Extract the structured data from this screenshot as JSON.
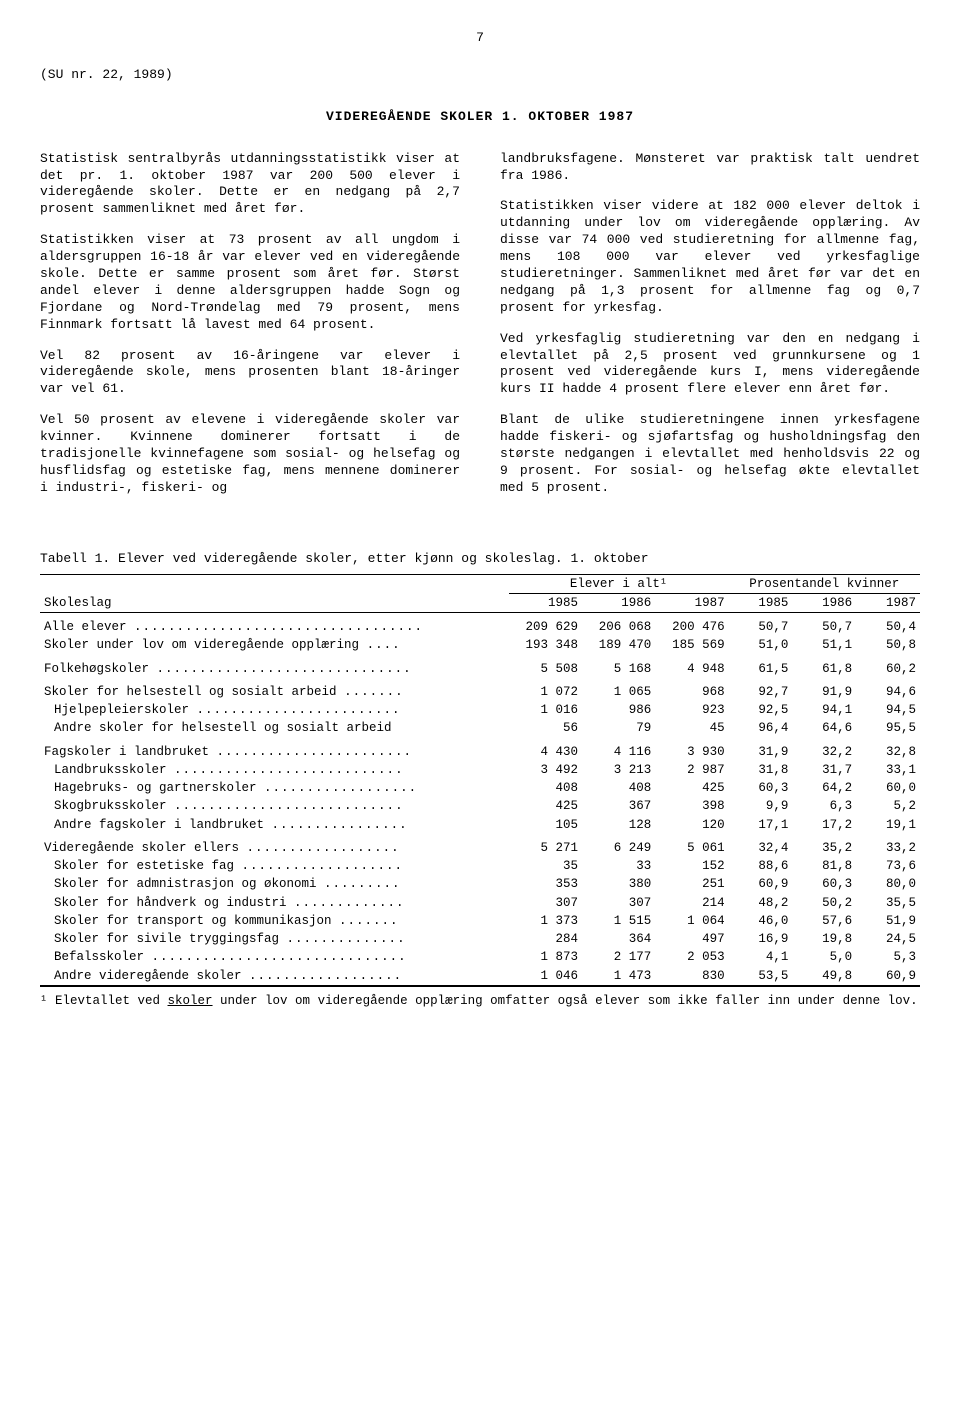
{
  "page_num": "7",
  "ref": "(SU nr. 22, 1989)",
  "title": "VIDEREGÅENDE SKOLER 1. OKTOBER 1987",
  "left_col": {
    "p1": "Statistisk sentralbyrås utdanningsstatistikk viser at det pr. 1. oktober 1987 var 200 500 elever i videregående skoler. Dette er en nedgang på 2,7 prosent sammenliknet med året før.",
    "p2": "Statistikken viser at 73 prosent av all ungdom i aldersgruppen 16-18 år var elever ved en videregående skole. Dette er samme prosent som året før. Størst andel elever i denne aldersgruppen hadde Sogn og Fjordane og Nord-Trøndelag med 79 prosent, mens Finnmark fortsatt lå lavest med 64 prosent.",
    "p3": "Vel 82 prosent av 16-åringene var elever i videregående skole, mens prosenten blant 18-åringer var vel 61.",
    "p4": "Vel 50 prosent av elevene i videregående skoler var kvinner. Kvinnene dominerer fortsatt i de tradisjonelle kvinnefagene som sosial- og helsefag og husflidsfag og estetiske fag, mens mennene dominerer i industri-, fiskeri- og"
  },
  "right_col": {
    "p1": "landbruksfagene. Mønsteret var praktisk talt uendret fra 1986.",
    "p2": "Statistikken viser videre at 182 000 elever deltok i utdanning under lov om videregående opplæring. Av disse var 74 000 ved studieretning for allmenne fag, mens 108 000 var elever ved yrkesfaglige studieretninger. Sammenliknet med året før var det en nedgang på 1,3 prosent for allmenne fag og 0,7 prosent for yrkesfag.",
    "p3": "Ved yrkesfaglig studieretning var den en nedgang i elevtallet på 2,5 prosent ved grunnkursene og 1 prosent ved videregående kurs I, mens videregående kurs II hadde 4 prosent flere elever enn året før.",
    "p4": "Blant de ulike studieretningene innen yrkesfagene hadde fiskeri- og sjøfartsfag og husholdningsfag den største nedgangen i elevtallet med henholdsvis 22 og 9 prosent. For sosial- og helsefag økte elevtallet med 5 prosent."
  },
  "table": {
    "caption": "Tabell 1.  Elever ved videregående skoler, etter kjønn og skoleslag.  1. oktober",
    "col_head_left": "Skoleslag",
    "super_head1": "Elever i alt¹",
    "super_head2": "Prosentandel kvinner",
    "years": [
      "1985",
      "1986",
      "1987",
      "1985",
      "1986",
      "1987"
    ],
    "rows": [
      {
        "label": "Alle elever",
        "d": "..................................",
        "v": [
          "209 629",
          "206 068",
          "200 476",
          "50,7",
          "50,7",
          "50,4"
        ],
        "group": true
      },
      {
        "label": "Skoler under lov om videregående opplæring",
        "d": "....",
        "v": [
          "193 348",
          "189 470",
          "185 569",
          "51,0",
          "51,1",
          "50,8"
        ]
      },
      {
        "label": "Folkehøgskoler",
        "d": "..............................",
        "v": [
          "5 508",
          "5 168",
          "4 948",
          "61,5",
          "61,8",
          "60,2"
        ],
        "group": true
      },
      {
        "label": "Skoler for helsestell og sosialt arbeid",
        "d": ".......",
        "v": [
          "1 072",
          "1 065",
          "968",
          "92,7",
          "91,9",
          "94,6"
        ],
        "group": true
      },
      {
        "label": "Hjelpepleierskoler",
        "d": "........................",
        "v": [
          "1 016",
          "986",
          "923",
          "92,5",
          "94,1",
          "94,5"
        ],
        "indent": true
      },
      {
        "label": "Andre skoler for helsestell og sosialt arbeid",
        "d": "",
        "v": [
          "56",
          "79",
          "45",
          "96,4",
          "64,6",
          "95,5"
        ],
        "indent": true
      },
      {
        "label": "Fagskoler i landbruket",
        "d": ".......................",
        "v": [
          "4 430",
          "4 116",
          "3 930",
          "31,9",
          "32,2",
          "32,8"
        ],
        "group": true
      },
      {
        "label": "Landbruksskoler",
        "d": "...........................",
        "v": [
          "3 492",
          "3 213",
          "2 987",
          "31,8",
          "31,7",
          "33,1"
        ],
        "indent": true
      },
      {
        "label": "Hagebruks- og gartnerskoler",
        "d": "..................",
        "v": [
          "408",
          "408",
          "425",
          "60,3",
          "64,2",
          "60,0"
        ],
        "indent": true
      },
      {
        "label": "Skogbruksskoler",
        "d": "...........................",
        "v": [
          "425",
          "367",
          "398",
          "9,9",
          "6,3",
          "5,2"
        ],
        "indent": true
      },
      {
        "label": "Andre fagskoler i landbruket",
        "d": "................",
        "v": [
          "105",
          "128",
          "120",
          "17,1",
          "17,2",
          "19,1"
        ],
        "indent": true
      },
      {
        "label": "Videregående skoler ellers",
        "d": "..................",
        "v": [
          "5 271",
          "6 249",
          "5 061",
          "32,4",
          "35,2",
          "33,2"
        ],
        "group": true
      },
      {
        "label": "Skoler for estetiske fag",
        "d": "...................",
        "v": [
          "35",
          "33",
          "152",
          "88,6",
          "81,8",
          "73,6"
        ],
        "indent": true
      },
      {
        "label": "Skoler for admnistrasjon og økonomi",
        "d": ".........",
        "v": [
          "353",
          "380",
          "251",
          "60,9",
          "60,3",
          "80,0"
        ],
        "indent": true
      },
      {
        "label": "Skoler for håndverk og industri",
        "d": ".............",
        "v": [
          "307",
          "307",
          "214",
          "48,2",
          "50,2",
          "35,5"
        ],
        "indent": true
      },
      {
        "label": "Skoler for transport og kommunikasjon",
        "d": ".......",
        "v": [
          "1 373",
          "1 515",
          "1 064",
          "46,0",
          "57,6",
          "51,9"
        ],
        "indent": true
      },
      {
        "label": "Skoler for sivile tryggingsfag",
        "d": "..............",
        "v": [
          "284",
          "364",
          "497",
          "16,9",
          "19,8",
          "24,5"
        ],
        "indent": true
      },
      {
        "label": "Befalsskoler",
        "d": "..............................",
        "v": [
          "1 873",
          "2 177",
          "2 053",
          "4,1",
          "5,0",
          "5,3"
        ],
        "indent": true
      },
      {
        "label": "Andre videregående skoler",
        "d": "..................",
        "v": [
          "1 046",
          "1 473",
          "830",
          "53,5",
          "49,8",
          "60,9"
        ],
        "indent": true
      }
    ]
  },
  "footnote_pre": "¹ Elevtallet ved ",
  "footnote_u": "skoler",
  "footnote_post": " under lov om videregående opplæring omfatter også elever som ikke faller inn under denne lov."
}
